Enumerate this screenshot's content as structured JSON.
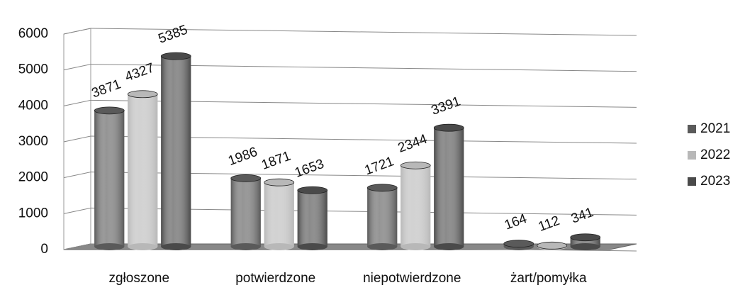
{
  "chart_data": {
    "type": "bar3d",
    "categories": [
      "zgłoszone",
      "potwierdzone",
      "niepotwierdzone",
      "żart/pomyłka"
    ],
    "series": [
      {
        "name": "2021",
        "color": "#5a5a5a",
        "values": [
          3871,
          1986,
          1721,
          164
        ]
      },
      {
        "name": "2022",
        "color": "#b8b8b8",
        "values": [
          4327,
          1871,
          2344,
          112
        ]
      },
      {
        "name": "2023",
        "color": "#4a4a4a",
        "values": [
          5385,
          1653,
          3391,
          341
        ]
      }
    ],
    "ylim": [
      0,
      6000
    ],
    "yticks": [
      0,
      1000,
      2000,
      3000,
      4000,
      5000,
      6000
    ],
    "grid": true,
    "legend": "right"
  }
}
